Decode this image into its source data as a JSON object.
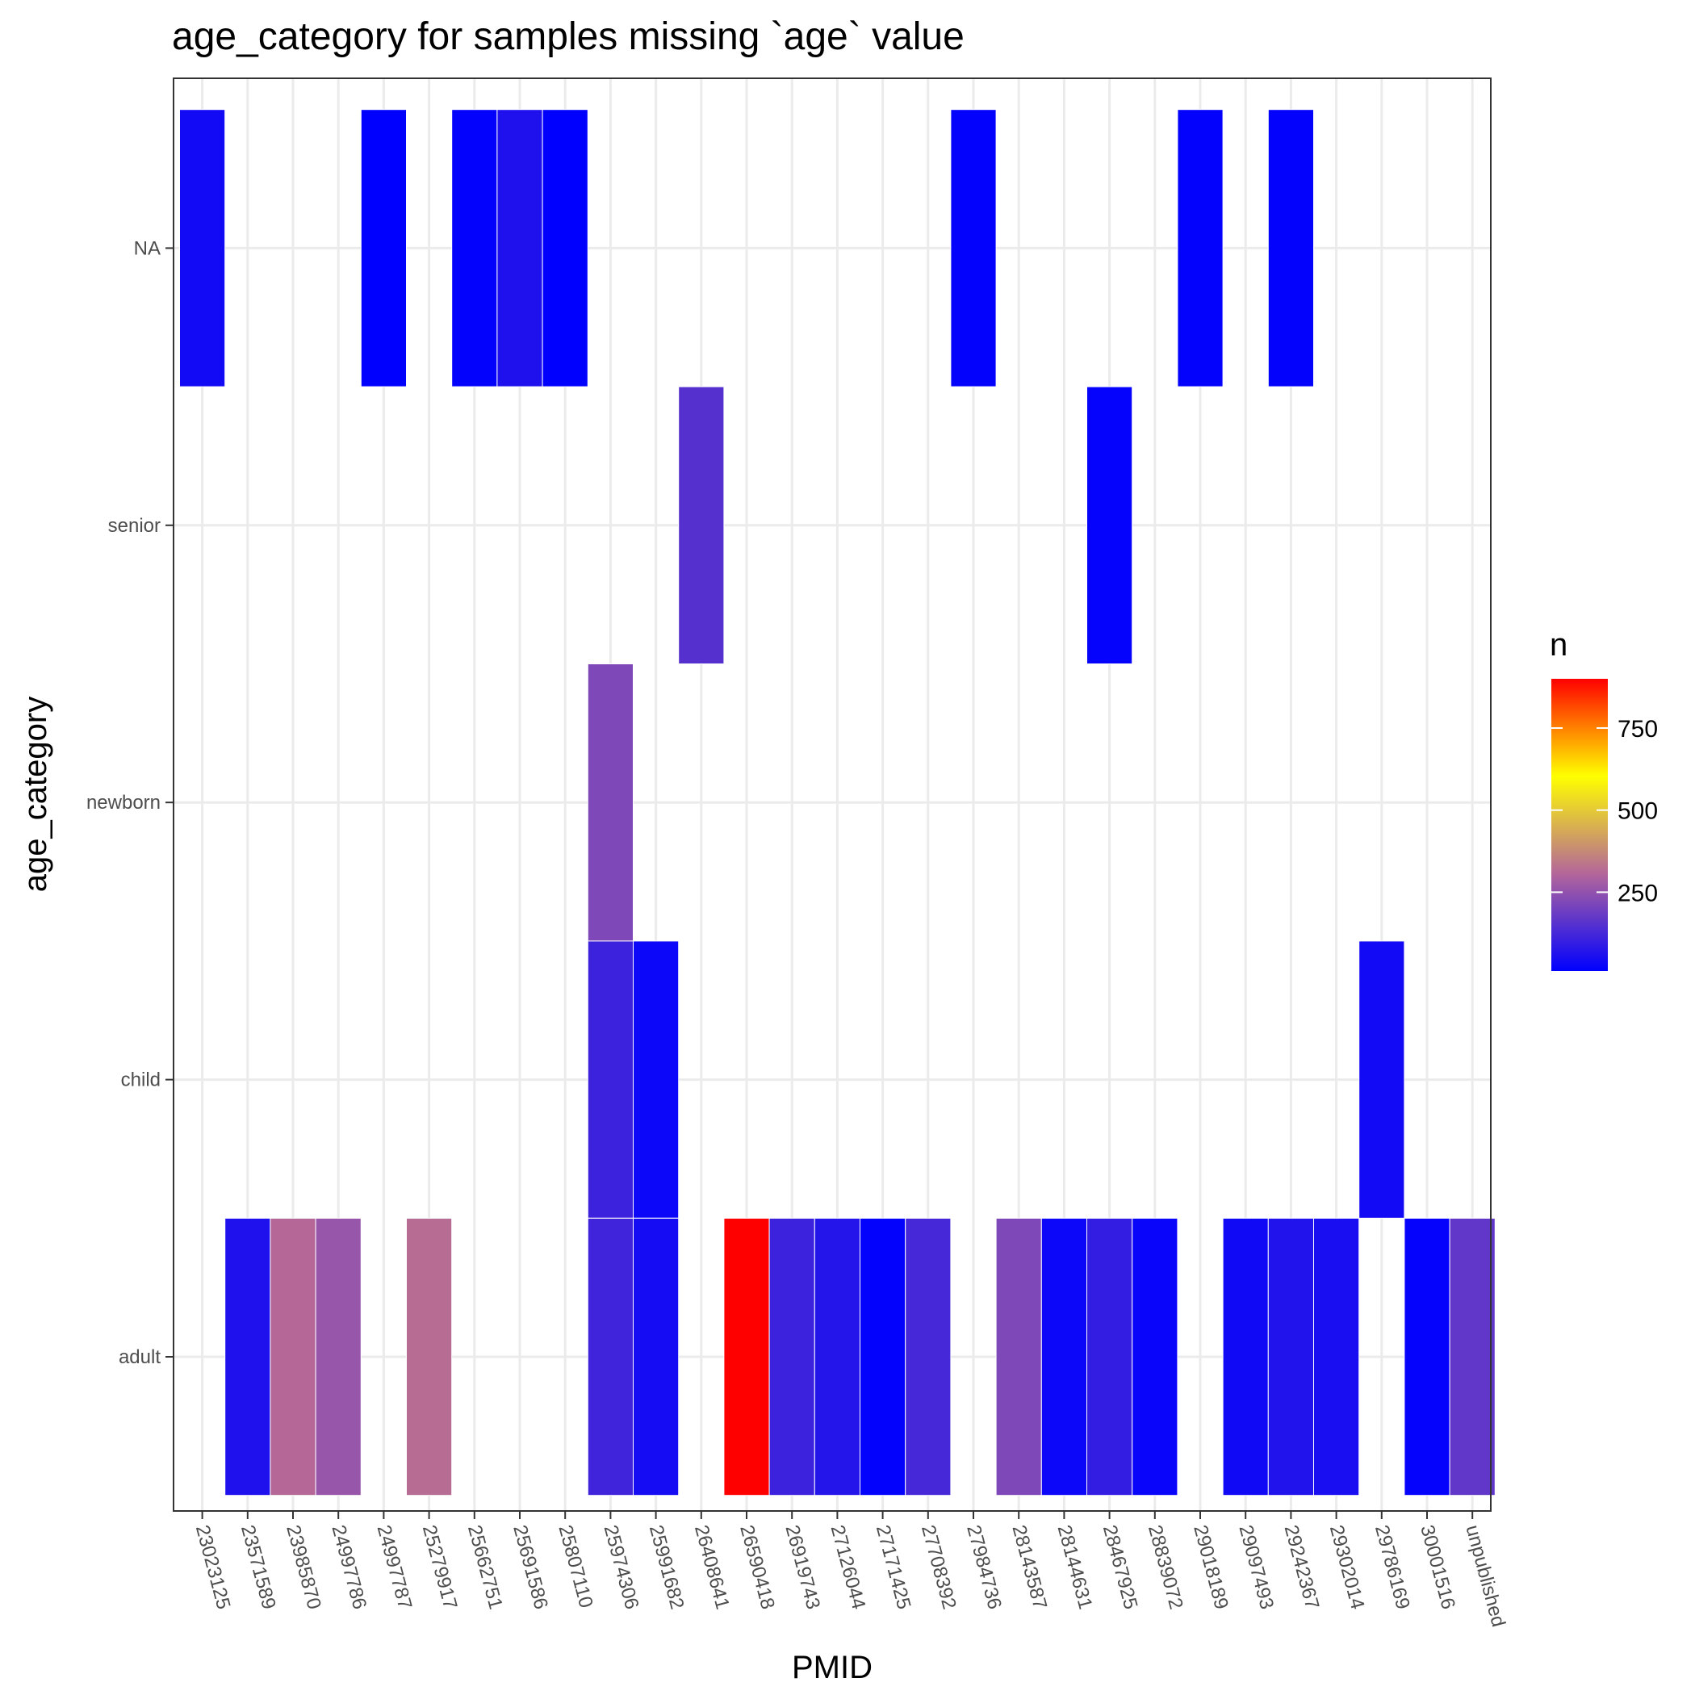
{
  "chart_data": {
    "type": "heatmap",
    "title": "age_category for samples missing `age` value",
    "xlabel": "PMID",
    "ylabel": "age_category",
    "x_categories": [
      "23023125",
      "23571589",
      "23985870",
      "24997786",
      "24997787",
      "25279917",
      "25662751",
      "25691586",
      "25807110",
      "25974306",
      "25991682",
      "26408641",
      "26590418",
      "26919743",
      "27126044",
      "27171425",
      "27708392",
      "27984736",
      "28143587",
      "28144631",
      "28467925",
      "28839072",
      "29018189",
      "29097493",
      "29242367",
      "29302014",
      "29786169",
      "30001516",
      "unpublished"
    ],
    "y_categories": [
      "adult",
      "child",
      "newborn",
      "senior",
      "NA"
    ],
    "cells": [
      {
        "x": "23023125",
        "y": "NA",
        "n": 40
      },
      {
        "x": "24997787",
        "y": "NA",
        "n": 10
      },
      {
        "x": "25662751",
        "y": "NA",
        "n": 15
      },
      {
        "x": "25691586",
        "y": "NA",
        "n": 60
      },
      {
        "x": "25807110",
        "y": "NA",
        "n": 10
      },
      {
        "x": "27984736",
        "y": "NA",
        "n": 15
      },
      {
        "x": "29018189",
        "y": "NA",
        "n": 15
      },
      {
        "x": "29242367",
        "y": "NA",
        "n": 15
      },
      {
        "x": "26408641",
        "y": "senior",
        "n": 150
      },
      {
        "x": "28467925",
        "y": "senior",
        "n": 20
      },
      {
        "x": "25974306",
        "y": "newborn",
        "n": 220
      },
      {
        "x": "25974306",
        "y": "child",
        "n": 110
      },
      {
        "x": "25991682",
        "y": "child",
        "n": 30
      },
      {
        "x": "29786169",
        "y": "child",
        "n": 40
      },
      {
        "x": "23571589",
        "y": "adult",
        "n": 60
      },
      {
        "x": "23985870",
        "y": "adult",
        "n": 310
      },
      {
        "x": "24997786",
        "y": "adult",
        "n": 260
      },
      {
        "x": "25279917",
        "y": "adult",
        "n": 320
      },
      {
        "x": "25974306",
        "y": "adult",
        "n": 115
      },
      {
        "x": "25991682",
        "y": "adult",
        "n": 45
      },
      {
        "x": "26590418",
        "y": "adult",
        "n": 900
      },
      {
        "x": "26919743",
        "y": "adult",
        "n": 110
      },
      {
        "x": "27126044",
        "y": "adult",
        "n": 70
      },
      {
        "x": "27171425",
        "y": "adult",
        "n": 15
      },
      {
        "x": "27708392",
        "y": "adult",
        "n": 125
      },
      {
        "x": "28143587",
        "y": "adult",
        "n": 220
      },
      {
        "x": "28144631",
        "y": "adult",
        "n": 30
      },
      {
        "x": "28467925",
        "y": "adult",
        "n": 95
      },
      {
        "x": "28839072",
        "y": "adult",
        "n": 25
      },
      {
        "x": "29097493",
        "y": "adult",
        "n": 35
      },
      {
        "x": "29242367",
        "y": "adult",
        "n": 65
      },
      {
        "x": "29302014",
        "y": "adult",
        "n": 50
      },
      {
        "x": "30001516",
        "y": "adult",
        "n": 20
      },
      {
        "x": "unpublished",
        "y": "adult",
        "n": 170
      }
    ],
    "legend": {
      "title": "n",
      "ticks": [
        250,
        500,
        750
      ],
      "range": [
        10,
        900
      ],
      "colors": [
        "#0000ff",
        "#b4669a",
        "#ffff00",
        "#ff0000"
      ],
      "placement": "right"
    },
    "grid": true
  }
}
